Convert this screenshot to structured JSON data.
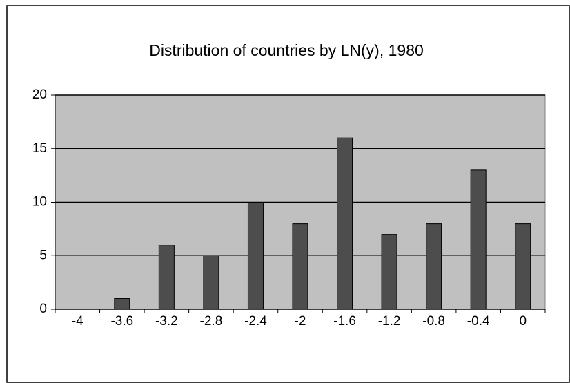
{
  "chart_data": {
    "type": "bar",
    "title": "Distribution of countries by LN(y), 1980",
    "categories": [
      "-4",
      "-3.6",
      "-3.2",
      "-2.8",
      "-2.4",
      "-2",
      "-1.6",
      "-1.2",
      "-0.8",
      "-0.4",
      "0"
    ],
    "values": [
      0,
      1,
      6,
      5,
      10,
      8,
      16,
      7,
      8,
      13,
      8
    ],
    "color": "#4d4d4d",
    "ylim": [
      0,
      20
    ],
    "yticks": [
      0,
      5,
      10,
      15,
      20
    ],
    "grid": true
  }
}
